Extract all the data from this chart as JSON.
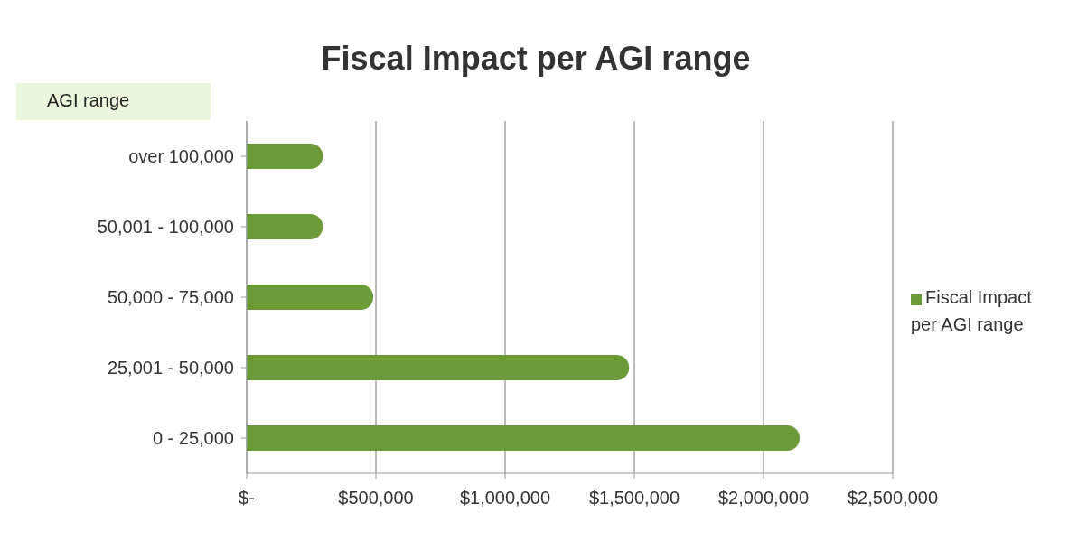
{
  "chart_data": {
    "type": "bar",
    "orientation": "horizontal",
    "title": "Fiscal Impact per AGI range",
    "ylabel": "AGI range",
    "categories": [
      "over 100,000",
      "50,001 - 100,000",
      "50,000 - 75,000",
      "25,001 - 50,000",
      "0 - 25,000"
    ],
    "series": [
      {
        "name": "Fiscal Impact per AGI range",
        "color": "#6b9b37",
        "values": [
          295000,
          295000,
          490000,
          1480000,
          2140000
        ]
      }
    ],
    "xlim": [
      0,
      2500000
    ],
    "xticks": [
      {
        "value": 0,
        "label": "$-"
      },
      {
        "value": 500000,
        "label": "$500,000"
      },
      {
        "value": 1000000,
        "label": "$1,000,000"
      },
      {
        "value": 1500000,
        "label": "$1,500,000"
      },
      {
        "value": 2000000,
        "label": "$2,000,000"
      },
      {
        "value": 2500000,
        "label": "$2,500,000"
      }
    ],
    "grid": "x",
    "legend": "right"
  }
}
